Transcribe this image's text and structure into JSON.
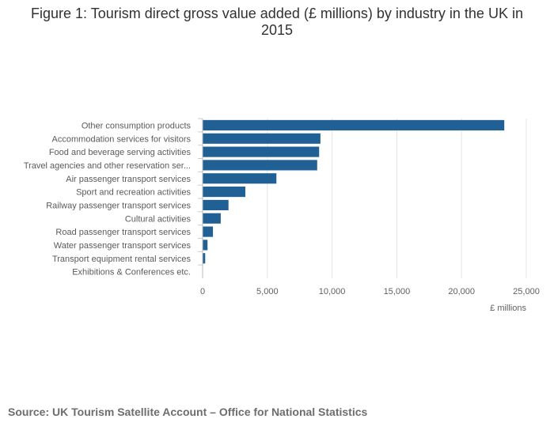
{
  "chart_data": {
    "type": "bar",
    "orientation": "horizontal",
    "title": "Figure 1: Tourism direct gross value added (£ millions) by industry in the UK in 2015",
    "xlabel": "£ millions",
    "ylabel": "",
    "xlim": [
      0,
      25000
    ],
    "xticks": [
      0,
      5000,
      10000,
      15000,
      20000,
      25000
    ],
    "xtick_labels": [
      "0",
      "5,000",
      "10,000",
      "15,000",
      "20,000",
      "25,000"
    ],
    "grid": true,
    "categories": [
      "Other consumption products",
      "Accommodation services for visitors",
      "Food and beverage serving activities",
      "Travel agencies and other reservation ser...",
      "Air passenger transport services",
      "Sport and recreation activities",
      "Railway passenger transport services",
      "Cultural activities",
      "Road passenger transport services",
      "Water passenger transport services",
      "Transport equipment rental services",
      "Exhibitions & Conferences etc."
    ],
    "values": [
      23300,
      9100,
      9000,
      8850,
      5700,
      3300,
      2000,
      1400,
      800,
      380,
      200,
      30
    ],
    "bar_color": "#206095"
  },
  "source": "Source: UK Tourism Satellite Account – Office for National Statistics"
}
